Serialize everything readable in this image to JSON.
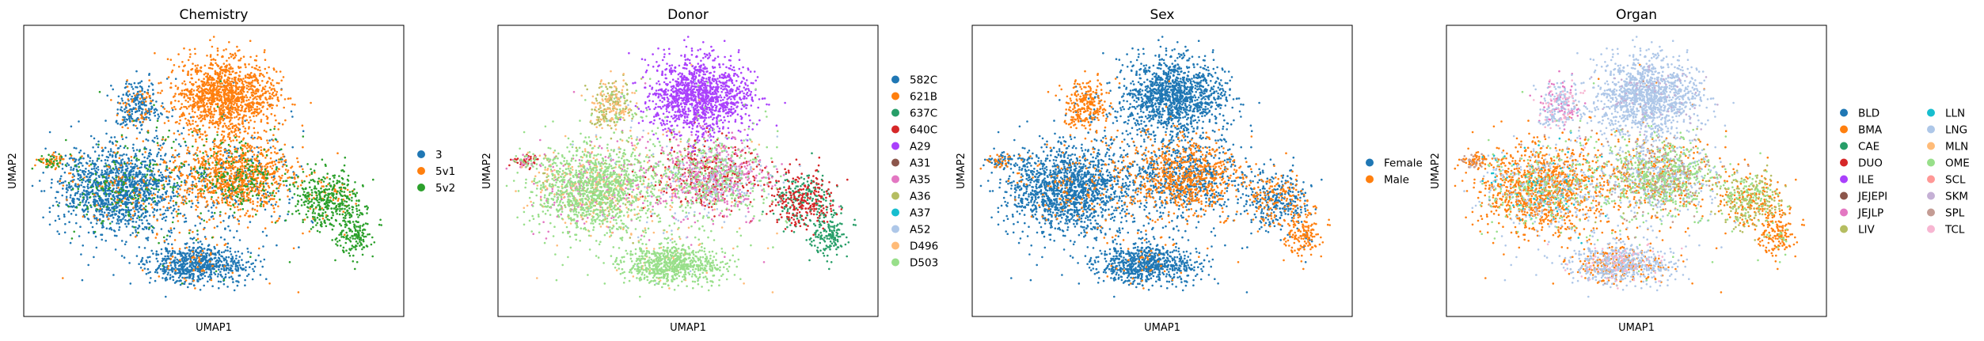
{
  "chart_data": [
    {
      "type": "scatter",
      "title": "Chemistry",
      "xlabel": "UMAP1",
      "ylabel": "UMAP2",
      "legend": "right",
      "grid": false,
      "series": [
        {
          "name": "3",
          "color": "#1f77b4"
        },
        {
          "name": "5v1",
          "color": "#ff7f0e"
        },
        {
          "name": "5v2",
          "color": "#2ca02c"
        }
      ]
    },
    {
      "type": "scatter",
      "title": "Donor",
      "xlabel": "UMAP1",
      "ylabel": "UMAP2",
      "legend": "right",
      "grid": false,
      "series": [
        {
          "name": "582C",
          "color": "#1f77b4"
        },
        {
          "name": "621B",
          "color": "#ff7f0e"
        },
        {
          "name": "637C",
          "color": "#279e68"
        },
        {
          "name": "640C",
          "color": "#d62728"
        },
        {
          "name": "A29",
          "color": "#aa40fc"
        },
        {
          "name": "A31",
          "color": "#8c564b"
        },
        {
          "name": "A35",
          "color": "#e377c2"
        },
        {
          "name": "A36",
          "color": "#b5bd61"
        },
        {
          "name": "A37",
          "color": "#17becf"
        },
        {
          "name": "A52",
          "color": "#aec7e8"
        },
        {
          "name": "D496",
          "color": "#ffbb78"
        },
        {
          "name": "D503",
          "color": "#98df8a"
        }
      ]
    },
    {
      "type": "scatter",
      "title": "Sex",
      "xlabel": "UMAP1",
      "ylabel": "UMAP2",
      "legend": "right",
      "grid": false,
      "series": [
        {
          "name": "Female",
          "color": "#1f77b4"
        },
        {
          "name": "Male",
          "color": "#ff7f0e"
        }
      ]
    },
    {
      "type": "scatter",
      "title": "Organ",
      "xlabel": "UMAP1",
      "ylabel": "UMAP2",
      "legend": "right",
      "grid": false,
      "series": [
        {
          "name": "BLD",
          "color": "#1f77b4"
        },
        {
          "name": "BMA",
          "color": "#ff7f0e"
        },
        {
          "name": "CAE",
          "color": "#279e68"
        },
        {
          "name": "DUO",
          "color": "#d62728"
        },
        {
          "name": "ILE",
          "color": "#aa40fc"
        },
        {
          "name": "JEJEPI",
          "color": "#8c564b"
        },
        {
          "name": "JEJLP",
          "color": "#e377c2"
        },
        {
          "name": "LIV",
          "color": "#b5bd61"
        },
        {
          "name": "LLN",
          "color": "#17becf"
        },
        {
          "name": "LNG",
          "color": "#aec7e8"
        },
        {
          "name": "MLN",
          "color": "#ffbb78"
        },
        {
          "name": "OME",
          "color": "#98df8a"
        },
        {
          "name": "SCL",
          "color": "#ff9896"
        },
        {
          "name": "SKM",
          "color": "#c5b0d5"
        },
        {
          "name": "SPL",
          "color": "#c49c94"
        },
        {
          "name": "TCL",
          "color": "#f7b6d2"
        }
      ]
    }
  ]
}
